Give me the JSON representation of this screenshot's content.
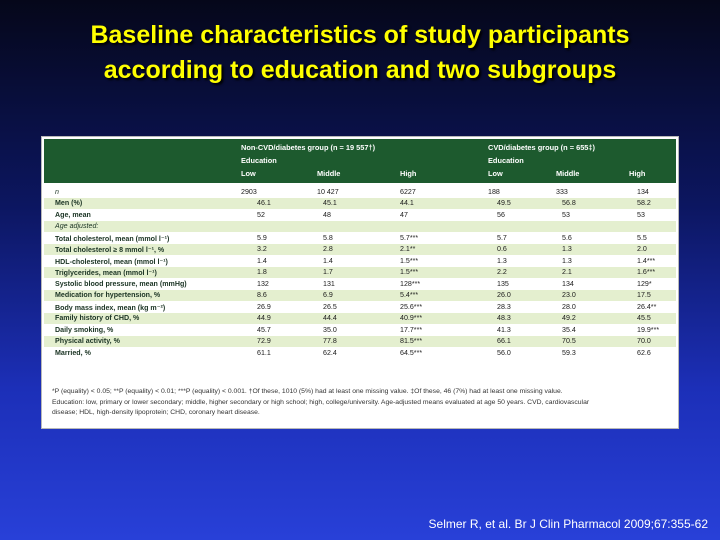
{
  "title": {
    "line1": "Baseline characteristics of study participants",
    "line2": "according to education and two subgroups"
  },
  "table": {
    "group1_title": "Non-CVD/diabetes group (n = 19 557†)",
    "group2_title": "CVD/diabetes group (n = 655‡)",
    "education_label": "Education",
    "col_labels": [
      "Low",
      "Middle",
      "High",
      "Low",
      "Middle",
      "High"
    ],
    "rows": [
      {
        "label": "n",
        "italic": true,
        "values": [
          "2903",
          "10 427",
          "6227",
          "188",
          "333",
          "134"
        ]
      },
      {
        "label": "Men (%)",
        "values": [
          "46.1",
          "45.1",
          "44.1",
          "49.5",
          "56.8",
          "58.2"
        ]
      },
      {
        "label": "Age, mean",
        "values": [
          "52",
          "48",
          "47",
          "56",
          "53",
          "53"
        ]
      },
      {
        "label": "Age adjusted:",
        "italic": true,
        "values": [
          "",
          "",
          "",
          "",
          "",
          ""
        ]
      },
      {
        "label": "Total cholesterol, mean (mmol l⁻¹)",
        "values": [
          "5.9",
          "5.8",
          "5.7***",
          "5.7",
          "5.6",
          "5.5"
        ]
      },
      {
        "label": "Total cholesterol ≥ 8 mmol l⁻¹, %",
        "values": [
          "3.2",
          "2.8",
          "2.1**",
          "0.6",
          "1.3",
          "2.0"
        ]
      },
      {
        "label": "HDL-cholesterol, mean (mmol l⁻¹)",
        "values": [
          "1.4",
          "1.4",
          "1.5***",
          "1.3",
          "1.3",
          "1.4***"
        ]
      },
      {
        "label": "Triglycerides, mean (mmol l⁻¹)",
        "values": [
          "1.8",
          "1.7",
          "1.5***",
          "2.2",
          "2.1",
          "1.6***"
        ]
      },
      {
        "label": "Systolic blood pressure, mean (mmHg)",
        "values": [
          "132",
          "131",
          "128***",
          "135",
          "134",
          "129*"
        ]
      },
      {
        "label": "Medication for hypertension, %",
        "values": [
          "8.6",
          "6.9",
          "5.4***",
          "26.0",
          "23.0",
          "17.5"
        ]
      },
      {
        "label": "Body mass index, mean (kg m⁻²)",
        "values": [
          "26.9",
          "26.5",
          "25.6***",
          "28.3",
          "28.0",
          "26.4**"
        ]
      },
      {
        "label": "Family history of CHD, %",
        "values": [
          "44.9",
          "44.4",
          "40.9***",
          "48.3",
          "49.2",
          "45.5"
        ]
      },
      {
        "label": "Daily smoking, %",
        "values": [
          "45.7",
          "35.0",
          "17.7***",
          "41.3",
          "35.4",
          "19.9***"
        ]
      },
      {
        "label": "Physical activity, %",
        "values": [
          "72.9",
          "77.8",
          "81.5***",
          "66.1",
          "70.5",
          "70.0"
        ]
      },
      {
        "label": "Married, %",
        "values": [
          "61.1",
          "62.4",
          "64.5***",
          "56.0",
          "59.3",
          "62.6"
        ]
      }
    ],
    "footnote": [
      "*P (equality) < 0.05; **P (equality) < 0.01; ***P (equality) < 0.001. †Of these, 1010 (5%) had at least one missing value. ‡Of these, 46 (7%) had at least one missing value.",
      "Education: low, primary or lower secondary; middle, higher secondary or high school; high, college/university. Age-adjusted means evaluated at age 50 years. CVD, cardiovascular",
      "disease; HDL, high-density lipoprotein; CHD, coronary heart disease."
    ]
  },
  "citation": "Selmer R, et al. Br J Clin Pharmacol 2009;67:355-62"
}
